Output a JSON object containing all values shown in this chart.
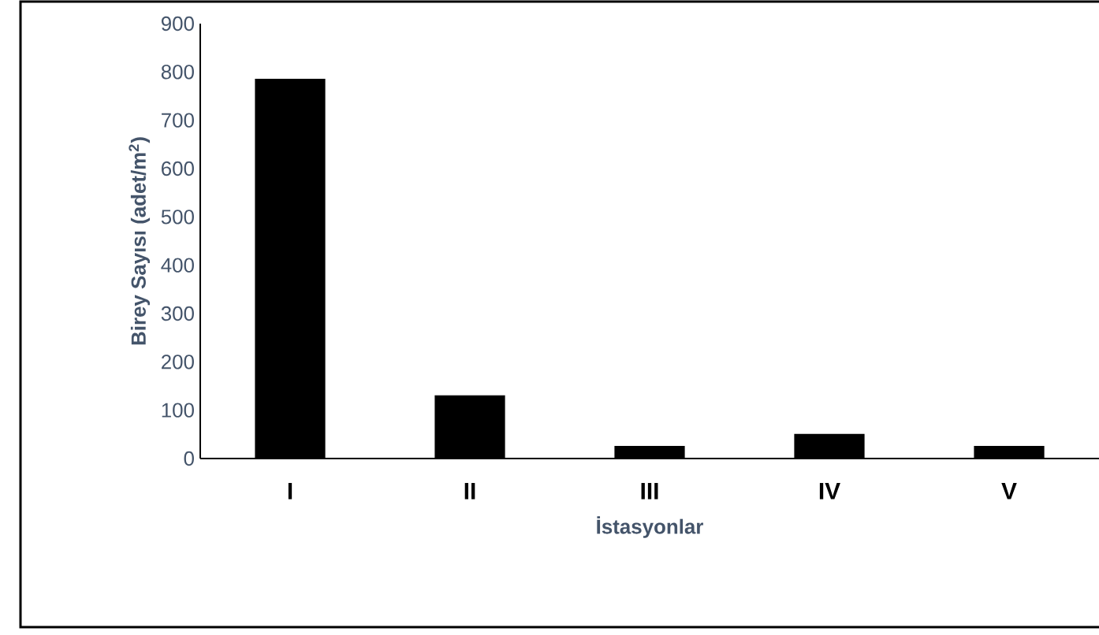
{
  "chart_data": {
    "type": "bar",
    "xlabel": "İstasyonlar",
    "ylabel": "Birey Sayısı (adet/m$^{2}$)",
    "categories": [
      "I",
      "II",
      "III",
      "IV",
      "V"
    ],
    "values": [
      785,
      130,
      25,
      50,
      25
    ],
    "color": "#000000",
    "ylim": [
      0,
      900
    ],
    "yticks": [
      0,
      100,
      200,
      300,
      400,
      500,
      600,
      700,
      800,
      900
    ],
    "grid": false
  }
}
